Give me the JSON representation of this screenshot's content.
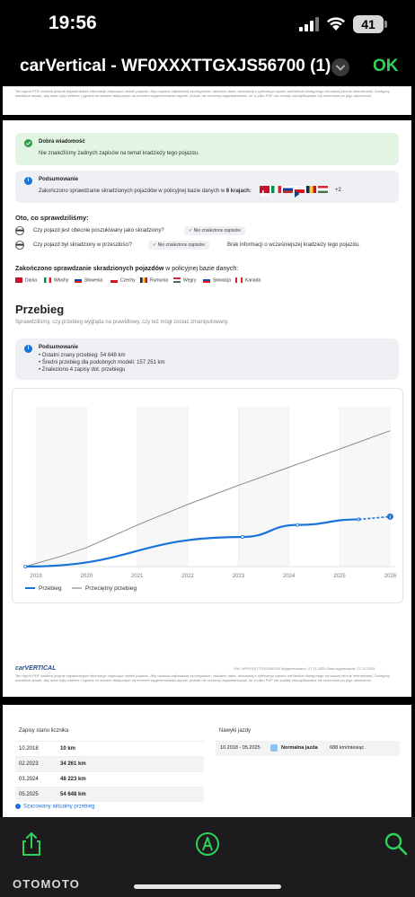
{
  "status_bar": {
    "time": "19:56",
    "battery": "41"
  },
  "header": {
    "title": "carVertical - WF0XXXTTGXJS56700 (1)",
    "done_label": "OK"
  },
  "disclaimer": "Ten raport PDF zawiera jedynie najważniejsze informacje dotyczące historii pojazdu. Aby uzyskać najbardziej szczegółowe i aktualne dane, skorzystaj z cyfrowego raportu carVertical dostępnego na naszej stronie internetowej. Dostępny wszelkich starań, aby dane były rzetelne i zgodne ze stanem faktycznym na moment wygenerowania raportu, jednak nie możemy zagwarantować, że w pliku PDF nie zostały zmodyfikowane lub zmienione po jego utworzeniu.",
  "theft": {
    "good_news_title": "Dobra wiadomość",
    "good_news_text": "Nie znaleźliśmy żadnych zapisów na temat kradzieży tego pojazdu.",
    "summary_title": "Podsumowanie",
    "summary_text_prefix": "Zakończono sprawdzanie skradzionych pojazdów w policyjnej bazie danych w",
    "summary_text_bold": "8 krajach:",
    "more_countries": "+2",
    "checked_heading": "Oto, co sprawdziliśmy:",
    "question_1": "Czy pojazd jest obecnie poszukiwany jako skradziony?",
    "question_2": "Czy pojazd był skradziony w przeszłości?",
    "no_records_1": "Nie znaleziono zapisów",
    "no_records_2": "Nie znaleziono zapisów",
    "no_info": "Brak informacji o wcześniejszej kradzieży tego pojazdu.",
    "db_heading_prefix": "Zakończono sprawdzanie skradzionych pojazdów",
    "db_heading_suffix": "w policyjnej bazie danych:",
    "countries": [
      "Dania",
      "Włochy",
      "Słowenia",
      "Czechy",
      "Rumunia",
      "Węgry",
      "Słowacja",
      "Kanada"
    ]
  },
  "mileage": {
    "title": "Przebieg",
    "subtitle": "Sprawdziliśmy, czy przebieg wygląda na prawidłowy, czy też mógł zostać zmanipulowany.",
    "summary_title": "Podsumowanie",
    "summary_points": [
      "Ostatni znany przebieg: 54 648 km",
      "Średni przebieg dla podobnych modeli: 157 251 km",
      "Znaleziono 4 zapisy dot. przebiegu"
    ]
  },
  "chart_data": {
    "type": "line",
    "x_ticks": [
      "2019",
      "2020",
      "2021",
      "2022",
      "2023",
      "2024",
      "2025",
      "2026"
    ],
    "xlim": [
      2018.75,
      2026.1
    ],
    "ylim": [
      0,
      185000
    ],
    "grid": true,
    "legend_position": "bottom-left",
    "series": [
      {
        "name": "Przebieg",
        "color": "#1a73d9",
        "x": [
          2018.79,
          2023.08,
          2024.17,
          2025.38
        ],
        "values": [
          10,
          34261,
          48223,
          54648
        ],
        "estimated": {
          "x": [
            2025.38,
            2026.0
          ],
          "values": [
            54648,
            57800
          ]
        }
      },
      {
        "name": "Przeciętny przebieg",
        "color": "#8a8a8a",
        "x": [
          2018.79,
          2019.5,
          2020.0,
          2021.0,
          2022.0,
          2023.0,
          2024.0,
          2025.0,
          2026.0
        ],
        "values": [
          0,
          12000,
          22000,
          48000,
          72000,
          94000,
          115000,
          136000,
          157251
        ]
      }
    ]
  },
  "report_footer": {
    "logo": "carVERTICAL",
    "meta": "VIN: WF0XXXTTGXJS56700     Wygenerowano: 27.11.2025     Data wygaśnięcia: 27.12.2025"
  },
  "odometer": {
    "heading": "Zapisy stanu licznika",
    "rows": [
      {
        "date": "10.2018",
        "value": "10 km"
      },
      {
        "date": "02.2023",
        "value": "34 261 km"
      },
      {
        "date": "03.2024",
        "value": "48 223 km"
      },
      {
        "date": "05.2025",
        "value": "54 648 km"
      }
    ],
    "estimated_label": "Szacowany aktualny przebieg"
  },
  "driving": {
    "heading": "Nawyki jazdy",
    "period": "10.2018 - 05.2025",
    "type": "Normalna jazda",
    "rate": "688 km/miesiąc"
  },
  "toolbar": {
    "watermark": "OTOMOTO"
  }
}
